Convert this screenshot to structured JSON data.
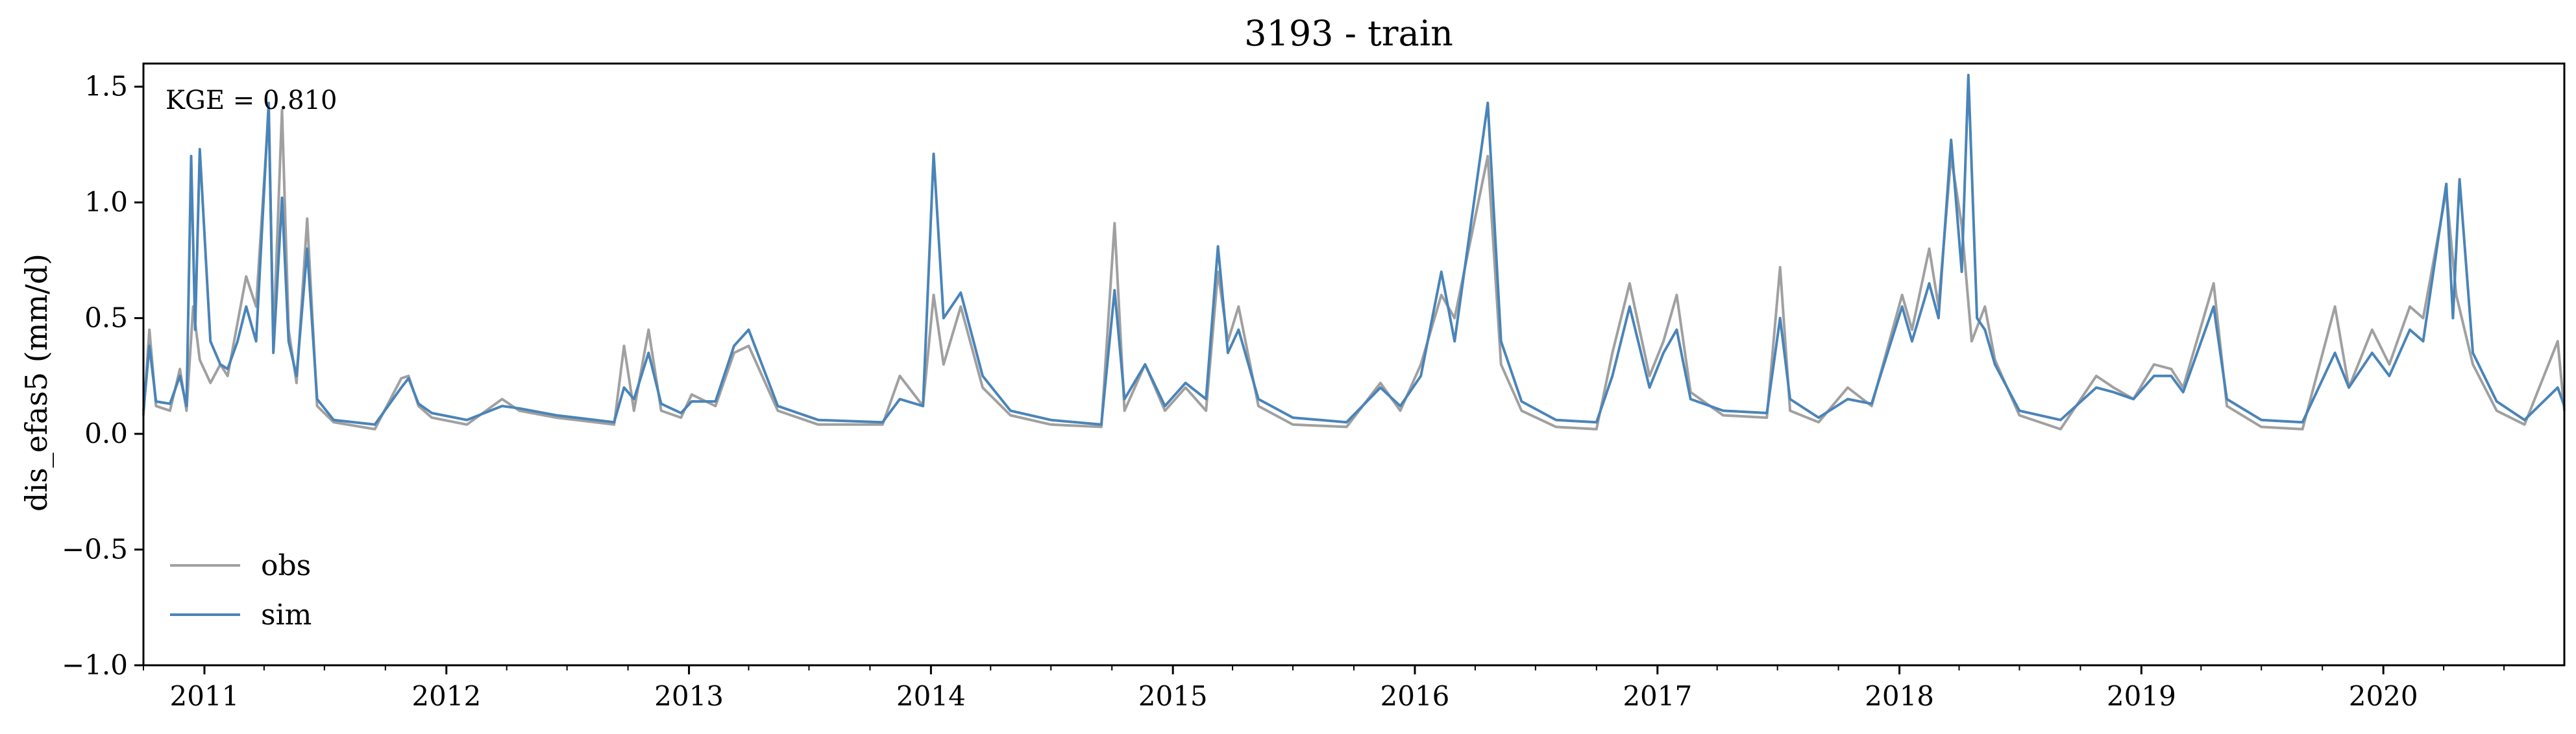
{
  "chart_data": {
    "type": "line",
    "title": "3193 - train",
    "ylabel": "dis_efas5 (mm/d)",
    "xlabel": "",
    "xlim": [
      "2010-10-01",
      "2020-09-30"
    ],
    "ylim": [
      -1.0,
      1.6
    ],
    "yticks": [
      -1.0,
      -0.5,
      0.0,
      0.5,
      1.0,
      1.5
    ],
    "ytick_labels": [
      "−1.0",
      "−0.5",
      "0.0",
      "0.5",
      "1.0",
      "1.5"
    ],
    "xtick_labels": [
      "2011",
      "2012",
      "2013",
      "2014",
      "2015",
      "2016",
      "2017",
      "2018",
      "2019",
      "2020"
    ],
    "annotation": "KGE = 0.810",
    "legend_position": "lower-left",
    "grid": false,
    "series": [
      {
        "name": "obs",
        "color": "#a0a0a0",
        "points": [
          [
            "2010-10-01",
            0.08
          ],
          [
            "2010-10-10",
            0.45
          ],
          [
            "2010-10-20",
            0.12
          ],
          [
            "2010-11-10",
            0.1
          ],
          [
            "2010-11-25",
            0.28
          ],
          [
            "2010-12-05",
            0.1
          ],
          [
            "2010-12-15",
            0.55
          ],
          [
            "2010-12-25",
            0.32
          ],
          [
            "2011-01-10",
            0.22
          ],
          [
            "2011-01-25",
            0.3
          ],
          [
            "2011-02-05",
            0.25
          ],
          [
            "2011-02-20",
            0.48
          ],
          [
            "2011-03-05",
            0.68
          ],
          [
            "2011-03-20",
            0.55
          ],
          [
            "2011-04-08",
            1.4
          ],
          [
            "2011-04-15",
            0.4
          ],
          [
            "2011-04-28",
            1.4
          ],
          [
            "2011-05-08",
            0.45
          ],
          [
            "2011-05-20",
            0.22
          ],
          [
            "2011-06-05",
            0.93
          ],
          [
            "2011-06-20",
            0.12
          ],
          [
            "2011-07-15",
            0.05
          ],
          [
            "2011-09-15",
            0.02
          ],
          [
            "2011-10-25",
            0.24
          ],
          [
            "2011-11-05",
            0.25
          ],
          [
            "2011-11-20",
            0.12
          ],
          [
            "2011-12-10",
            0.07
          ],
          [
            "2012-02-01",
            0.04
          ],
          [
            "2012-03-25",
            0.15
          ],
          [
            "2012-04-20",
            0.1
          ],
          [
            "2012-06-15",
            0.07
          ],
          [
            "2012-09-10",
            0.04
          ],
          [
            "2012-09-25",
            0.38
          ],
          [
            "2012-10-10",
            0.1
          ],
          [
            "2012-11-01",
            0.45
          ],
          [
            "2012-11-20",
            0.1
          ],
          [
            "2012-12-20",
            0.07
          ],
          [
            "2013-01-05",
            0.17
          ],
          [
            "2013-02-10",
            0.12
          ],
          [
            "2013-03-10",
            0.35
          ],
          [
            "2013-04-01",
            0.38
          ],
          [
            "2013-05-15",
            0.1
          ],
          [
            "2013-07-15",
            0.04
          ],
          [
            "2013-10-20",
            0.04
          ],
          [
            "2013-11-15",
            0.25
          ],
          [
            "2013-12-20",
            0.12
          ],
          [
            "2014-01-05",
            0.6
          ],
          [
            "2014-01-20",
            0.3
          ],
          [
            "2014-02-15",
            0.55
          ],
          [
            "2014-03-20",
            0.2
          ],
          [
            "2014-05-01",
            0.08
          ],
          [
            "2014-07-01",
            0.04
          ],
          [
            "2014-09-15",
            0.03
          ],
          [
            "2014-10-05",
            0.91
          ],
          [
            "2014-10-20",
            0.1
          ],
          [
            "2014-11-20",
            0.3
          ],
          [
            "2014-12-20",
            0.1
          ],
          [
            "2015-01-20",
            0.2
          ],
          [
            "2015-02-20",
            0.1
          ],
          [
            "2015-03-10",
            0.7
          ],
          [
            "2015-03-25",
            0.4
          ],
          [
            "2015-04-10",
            0.55
          ],
          [
            "2015-05-10",
            0.12
          ],
          [
            "2015-07-01",
            0.04
          ],
          [
            "2015-09-20",
            0.03
          ],
          [
            "2015-11-10",
            0.22
          ],
          [
            "2015-12-10",
            0.1
          ],
          [
            "2016-01-10",
            0.3
          ],
          [
            "2016-02-10",
            0.6
          ],
          [
            "2016-03-01",
            0.5
          ],
          [
            "2016-04-20",
            1.2
          ],
          [
            "2016-05-10",
            0.3
          ],
          [
            "2016-06-10",
            0.1
          ],
          [
            "2016-08-01",
            0.03
          ],
          [
            "2016-10-01",
            0.02
          ],
          [
            "2016-10-25",
            0.35
          ],
          [
            "2016-11-20",
            0.65
          ],
          [
            "2016-12-20",
            0.25
          ],
          [
            "2017-01-10",
            0.4
          ],
          [
            "2017-01-30",
            0.6
          ],
          [
            "2017-02-20",
            0.18
          ],
          [
            "2017-04-10",
            0.08
          ],
          [
            "2017-06-15",
            0.07
          ],
          [
            "2017-07-05",
            0.72
          ],
          [
            "2017-07-20",
            0.1
          ],
          [
            "2017-09-01",
            0.05
          ],
          [
            "2017-10-15",
            0.2
          ],
          [
            "2017-11-20",
            0.12
          ],
          [
            "2018-01-05",
            0.6
          ],
          [
            "2018-01-20",
            0.45
          ],
          [
            "2018-02-15",
            0.8
          ],
          [
            "2018-03-01",
            0.55
          ],
          [
            "2018-03-20",
            1.2
          ],
          [
            "2018-04-05",
            0.9
          ],
          [
            "2018-04-20",
            0.4
          ],
          [
            "2018-05-10",
            0.55
          ],
          [
            "2018-05-25",
            0.32
          ],
          [
            "2018-07-01",
            0.08
          ],
          [
            "2018-09-01",
            0.02
          ],
          [
            "2018-10-25",
            0.25
          ],
          [
            "2018-11-20",
            0.2
          ],
          [
            "2018-12-20",
            0.15
          ],
          [
            "2019-01-20",
            0.3
          ],
          [
            "2019-02-15",
            0.28
          ],
          [
            "2019-03-05",
            0.2
          ],
          [
            "2019-04-20",
            0.65
          ],
          [
            "2019-05-10",
            0.12
          ],
          [
            "2019-07-01",
            0.03
          ],
          [
            "2019-09-01",
            0.02
          ],
          [
            "2019-10-20",
            0.55
          ],
          [
            "2019-11-10",
            0.2
          ],
          [
            "2019-12-15",
            0.45
          ],
          [
            "2020-01-10",
            0.3
          ],
          [
            "2020-02-10",
            0.55
          ],
          [
            "2020-03-01",
            0.5
          ],
          [
            "2020-04-05",
            1.05
          ],
          [
            "2020-04-20",
            0.6
          ],
          [
            "2020-05-15",
            0.3
          ],
          [
            "2020-06-20",
            0.1
          ],
          [
            "2020-08-01",
            0.04
          ],
          [
            "2020-09-20",
            0.4
          ],
          [
            "2020-09-30",
            0.1
          ]
        ]
      },
      {
        "name": "sim",
        "color": "#4a84b8",
        "points": [
          [
            "2010-10-01",
            0.1
          ],
          [
            "2010-10-10",
            0.38
          ],
          [
            "2010-10-20",
            0.14
          ],
          [
            "2010-11-10",
            0.13
          ],
          [
            "2010-11-25",
            0.25
          ],
          [
            "2010-12-05",
            0.12
          ],
          [
            "2010-12-12",
            1.2
          ],
          [
            "2010-12-18",
            0.45
          ],
          [
            "2010-12-25",
            1.23
          ],
          [
            "2011-01-10",
            0.4
          ],
          [
            "2011-01-25",
            0.3
          ],
          [
            "2011-02-05",
            0.28
          ],
          [
            "2011-02-20",
            0.4
          ],
          [
            "2011-03-05",
            0.55
          ],
          [
            "2011-03-20",
            0.4
          ],
          [
            "2011-04-08",
            1.43
          ],
          [
            "2011-04-15",
            0.35
          ],
          [
            "2011-04-28",
            1.02
          ],
          [
            "2011-05-08",
            0.4
          ],
          [
            "2011-05-20",
            0.25
          ],
          [
            "2011-06-05",
            0.8
          ],
          [
            "2011-06-20",
            0.15
          ],
          [
            "2011-07-15",
            0.06
          ],
          [
            "2011-09-15",
            0.04
          ],
          [
            "2011-10-25",
            0.2
          ],
          [
            "2011-11-05",
            0.24
          ],
          [
            "2011-11-20",
            0.13
          ],
          [
            "2011-12-10",
            0.09
          ],
          [
            "2012-02-01",
            0.06
          ],
          [
            "2012-03-25",
            0.12
          ],
          [
            "2012-04-20",
            0.11
          ],
          [
            "2012-06-15",
            0.08
          ],
          [
            "2012-09-10",
            0.05
          ],
          [
            "2012-09-25",
            0.2
          ],
          [
            "2012-10-10",
            0.15
          ],
          [
            "2012-11-01",
            0.35
          ],
          [
            "2012-11-20",
            0.13
          ],
          [
            "2012-12-20",
            0.09
          ],
          [
            "2013-01-05",
            0.14
          ],
          [
            "2013-02-10",
            0.14
          ],
          [
            "2013-03-10",
            0.38
          ],
          [
            "2013-04-01",
            0.45
          ],
          [
            "2013-05-15",
            0.12
          ],
          [
            "2013-07-15",
            0.06
          ],
          [
            "2013-10-20",
            0.05
          ],
          [
            "2013-11-15",
            0.15
          ],
          [
            "2013-12-20",
            0.12
          ],
          [
            "2014-01-05",
            1.21
          ],
          [
            "2014-01-20",
            0.5
          ],
          [
            "2014-02-15",
            0.61
          ],
          [
            "2014-03-20",
            0.25
          ],
          [
            "2014-05-01",
            0.1
          ],
          [
            "2014-07-01",
            0.06
          ],
          [
            "2014-09-15",
            0.04
          ],
          [
            "2014-10-05",
            0.62
          ],
          [
            "2014-10-20",
            0.15
          ],
          [
            "2014-11-20",
            0.3
          ],
          [
            "2014-12-20",
            0.12
          ],
          [
            "2015-01-20",
            0.22
          ],
          [
            "2015-02-20",
            0.15
          ],
          [
            "2015-03-10",
            0.81
          ],
          [
            "2015-03-25",
            0.35
          ],
          [
            "2015-04-10",
            0.45
          ],
          [
            "2015-05-10",
            0.15
          ],
          [
            "2015-07-01",
            0.07
          ],
          [
            "2015-09-20",
            0.05
          ],
          [
            "2015-11-10",
            0.2
          ],
          [
            "2015-12-10",
            0.12
          ],
          [
            "2016-01-10",
            0.25
          ],
          [
            "2016-02-10",
            0.7
          ],
          [
            "2016-03-01",
            0.4
          ],
          [
            "2016-04-20",
            1.43
          ],
          [
            "2016-05-10",
            0.4
          ],
          [
            "2016-06-10",
            0.14
          ],
          [
            "2016-08-01",
            0.06
          ],
          [
            "2016-10-01",
            0.05
          ],
          [
            "2016-10-25",
            0.25
          ],
          [
            "2016-11-20",
            0.55
          ],
          [
            "2016-12-20",
            0.2
          ],
          [
            "2017-01-10",
            0.35
          ],
          [
            "2017-01-30",
            0.45
          ],
          [
            "2017-02-20",
            0.15
          ],
          [
            "2017-04-10",
            0.1
          ],
          [
            "2017-06-15",
            0.09
          ],
          [
            "2017-07-05",
            0.5
          ],
          [
            "2017-07-20",
            0.15
          ],
          [
            "2017-09-01",
            0.07
          ],
          [
            "2017-10-15",
            0.15
          ],
          [
            "2017-11-20",
            0.13
          ],
          [
            "2018-01-05",
            0.55
          ],
          [
            "2018-01-20",
            0.4
          ],
          [
            "2018-02-15",
            0.65
          ],
          [
            "2018-03-01",
            0.5
          ],
          [
            "2018-03-20",
            1.27
          ],
          [
            "2018-04-05",
            0.7
          ],
          [
            "2018-04-15",
            1.55
          ],
          [
            "2018-04-28",
            0.5
          ],
          [
            "2018-05-10",
            0.45
          ],
          [
            "2018-05-25",
            0.3
          ],
          [
            "2018-07-01",
            0.1
          ],
          [
            "2018-09-01",
            0.06
          ],
          [
            "2018-10-25",
            0.2
          ],
          [
            "2018-11-20",
            0.18
          ],
          [
            "2018-12-20",
            0.15
          ],
          [
            "2019-01-20",
            0.25
          ],
          [
            "2019-02-15",
            0.25
          ],
          [
            "2019-03-05",
            0.18
          ],
          [
            "2019-04-20",
            0.55
          ],
          [
            "2019-05-10",
            0.15
          ],
          [
            "2019-07-01",
            0.06
          ],
          [
            "2019-09-01",
            0.05
          ],
          [
            "2019-10-20",
            0.35
          ],
          [
            "2019-11-10",
            0.2
          ],
          [
            "2019-12-15",
            0.35
          ],
          [
            "2020-01-10",
            0.25
          ],
          [
            "2020-02-10",
            0.45
          ],
          [
            "2020-03-01",
            0.4
          ],
          [
            "2020-04-05",
            1.08
          ],
          [
            "2020-04-15",
            0.5
          ],
          [
            "2020-04-25",
            1.1
          ],
          [
            "2020-05-15",
            0.35
          ],
          [
            "2020-06-20",
            0.14
          ],
          [
            "2020-08-01",
            0.06
          ],
          [
            "2020-09-20",
            0.2
          ],
          [
            "2020-09-30",
            0.12
          ]
        ]
      }
    ]
  }
}
